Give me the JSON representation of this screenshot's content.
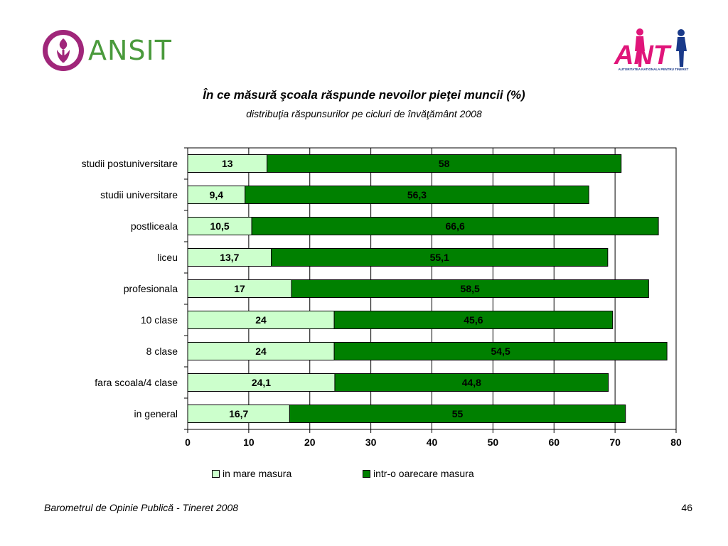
{
  "colors": {
    "series_light": "#ccffcc",
    "series_dark": "#008000",
    "logo_magenta": "#a0267a",
    "logo_green": "#4a9a3c",
    "ant_pink": "#e0157a",
    "ant_blue": "#1a3a8a"
  },
  "logos": {
    "left_text": "ANSIT",
    "right_text": "ANT",
    "right_tagline": "AUTORITATEA NATIONALA PENTRU TINERET"
  },
  "chart_data": {
    "type": "bar",
    "orientation": "horizontal",
    "stacked": true,
    "title": "În ce măsură şcoala răspunde nevoilor pieţei muncii (%)",
    "subtitle": "distribuţia răspunsurilor pe cicluri de învăţământ 2008",
    "categories": [
      "studii postuniversitare",
      "studii universitare",
      "postliceala",
      "liceu",
      "profesionala",
      "10 clase",
      "8 clase",
      "fara scoala/4 clase",
      "in general"
    ],
    "series": [
      {
        "name": "in mare masura",
        "values": [
          13,
          9.4,
          10.5,
          13.7,
          17,
          24,
          24,
          24.1,
          16.7
        ],
        "labels": [
          "13",
          "9,4",
          "10,5",
          "13,7",
          "17",
          "24",
          "24",
          "24,1",
          "16,7"
        ]
      },
      {
        "name": "intr-o oarecare masura",
        "values": [
          58,
          56.3,
          66.6,
          55.1,
          58.5,
          45.6,
          54.5,
          44.8,
          55
        ],
        "labels": [
          "58",
          "56,3",
          "66,6",
          "55,1",
          "58,5",
          "45,6",
          "54,5",
          "44,8",
          "55"
        ]
      }
    ],
    "xlim": [
      0,
      80
    ],
    "xticks": [
      0,
      10,
      20,
      30,
      40,
      50,
      60,
      70,
      80
    ],
    "grid": true,
    "legend_position": "bottom"
  },
  "footer": {
    "source": "Barometrul de Opinie Publică - Tineret 2008",
    "page_number": "46"
  }
}
